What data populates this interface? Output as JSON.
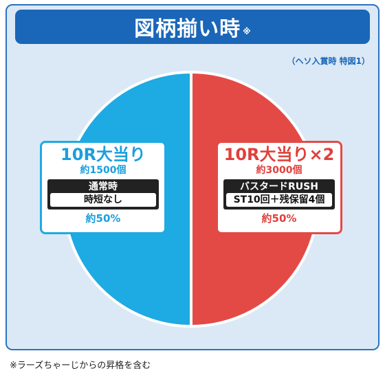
{
  "title": {
    "text": "図柄揃い時",
    "mark": "※"
  },
  "subnote": "（ヘソ入賞時 特図1）",
  "chart_data": {
    "type": "pie",
    "slices": [
      {
        "title": "10R大当り",
        "payout": "約1500個",
        "mode": "通常時",
        "detail": "時短なし",
        "percent_label": "約50%",
        "value": 50,
        "color": "#1eaae2"
      },
      {
        "title": "10R大当り×2",
        "payout": "約3000個",
        "mode": "バスタードRUSH",
        "detail": "ST10回＋残保留4個",
        "percent_label": "約50%",
        "value": 50,
        "color": "#e34a45"
      }
    ]
  },
  "footnote": "※ラーズちゃーじからの昇格を含む"
}
